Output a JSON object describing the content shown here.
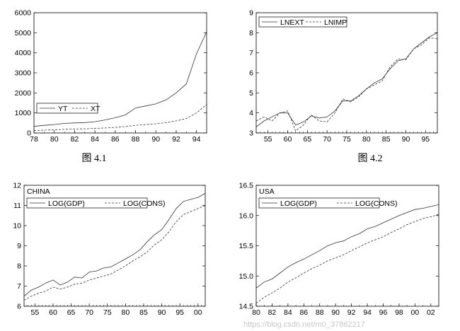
{
  "figures": {
    "fig1_caption": "图 4.1",
    "fig2_caption": "图 4.2"
  },
  "watermark": "https://blog.csdn.net/m0_37862217",
  "chart_data": [
    {
      "type": "line",
      "x": [
        78,
        79,
        80,
        81,
        82,
        83,
        84,
        85,
        86,
        87,
        88,
        89,
        90,
        91,
        92,
        93,
        94,
        95
      ],
      "series": [
        {
          "name": "YT",
          "style": "solid",
          "values": [
            330,
            380,
            420,
            480,
            500,
            520,
            560,
            650,
            760,
            900,
            1250,
            1350,
            1450,
            1650,
            2000,
            2450,
            3950,
            5050
          ]
        },
        {
          "name": "XT",
          "style": "dashed",
          "values": [
            120,
            140,
            160,
            180,
            200,
            210,
            230,
            250,
            280,
            320,
            380,
            420,
            460,
            520,
            600,
            720,
            1000,
            1420
          ]
        }
      ],
      "xlim": [
        78,
        95
      ],
      "ylim": [
        0,
        6000
      ],
      "xticks": [
        78,
        80,
        82,
        84,
        86,
        88,
        90,
        92,
        94
      ],
      "yticks": [
        0,
        1000,
        2000,
        3000,
        4000,
        5000,
        6000
      ],
      "legend": "bottom-left",
      "grid": false
    },
    {
      "type": "line",
      "x": [
        52,
        54,
        56,
        58,
        60,
        62,
        64,
        66,
        68,
        70,
        72,
        74,
        76,
        78,
        80,
        82,
        84,
        86,
        88,
        90,
        92,
        94,
        96,
        98
      ],
      "series": [
        {
          "name": "LNEXT",
          "style": "solid",
          "values": [
            3.3,
            3.6,
            3.8,
            4.0,
            4.0,
            3.4,
            3.55,
            3.85,
            3.75,
            3.8,
            4.1,
            4.6,
            4.6,
            4.85,
            5.2,
            5.5,
            5.7,
            6.2,
            6.6,
            6.7,
            7.2,
            7.5,
            7.8,
            8.0
          ]
        },
        {
          "name": "LNIMP",
          "style": "dashed",
          "values": [
            3.6,
            3.8,
            3.6,
            4.0,
            4.1,
            3.1,
            3.4,
            3.9,
            3.6,
            3.55,
            4.0,
            4.7,
            4.55,
            4.8,
            5.2,
            5.4,
            5.6,
            6.3,
            6.7,
            6.65,
            7.2,
            7.4,
            7.75,
            7.7
          ]
        }
      ],
      "xlim": [
        52,
        98
      ],
      "ylim": [
        3,
        9
      ],
      "xticks": [
        55,
        60,
        65,
        70,
        75,
        80,
        85,
        90,
        95
      ],
      "yticks": [
        3,
        4,
        5,
        6,
        7,
        8,
        9
      ],
      "legend": "top-left",
      "grid": false
    },
    {
      "type": "line",
      "title": "CHINA",
      "x": [
        52,
        54,
        56,
        58,
        60,
        62,
        64,
        66,
        68,
        70,
        72,
        74,
        76,
        78,
        80,
        82,
        84,
        86,
        88,
        90,
        92,
        94,
        96,
        98,
        100,
        102
      ],
      "series": [
        {
          "name": "LOG(GDP)",
          "style": "solid",
          "values": [
            6.5,
            6.8,
            6.95,
            7.15,
            7.3,
            7.05,
            7.2,
            7.45,
            7.4,
            7.7,
            7.75,
            7.9,
            7.95,
            8.15,
            8.35,
            8.55,
            8.8,
            9.2,
            9.55,
            9.8,
            10.3,
            10.85,
            11.2,
            11.3,
            11.4,
            11.6
          ]
        },
        {
          "name": "LOG(CONS)",
          "style": "dashed",
          "values": [
            6.3,
            6.5,
            6.65,
            6.75,
            6.95,
            6.85,
            6.95,
            7.1,
            7.15,
            7.3,
            7.4,
            7.5,
            7.6,
            7.8,
            8.0,
            8.25,
            8.45,
            8.7,
            9.05,
            9.3,
            9.7,
            10.2,
            10.55,
            10.7,
            10.85,
            11.0
          ]
        }
      ],
      "xlim": [
        52,
        102
      ],
      "ylim": [
        6,
        12
      ],
      "xticks": [
        "55",
        "60",
        "65",
        "70",
        "75",
        "80",
        "85",
        "90",
        "95",
        "00"
      ],
      "xtick_values": [
        55,
        60,
        65,
        70,
        75,
        80,
        85,
        90,
        95,
        100
      ],
      "yticks": [
        6,
        7,
        8,
        9,
        10,
        11,
        12
      ],
      "legend": "top-left",
      "grid": false
    },
    {
      "type": "line",
      "title": "USA",
      "x": [
        80,
        81,
        82,
        83,
        84,
        85,
        86,
        87,
        88,
        89,
        90,
        91,
        92,
        93,
        94,
        95,
        96,
        97,
        98,
        99,
        100,
        101,
        102,
        103
      ],
      "series": [
        {
          "name": "LOG(GDP)",
          "style": "solid",
          "values": [
            14.8,
            14.9,
            14.95,
            15.05,
            15.15,
            15.22,
            15.28,
            15.35,
            15.42,
            15.5,
            15.55,
            15.58,
            15.65,
            15.7,
            15.78,
            15.82,
            15.88,
            15.94,
            16.0,
            16.05,
            16.1,
            16.12,
            16.15,
            16.18
          ]
        },
        {
          "name": "LOG(CONS)",
          "style": "dashed",
          "values": [
            14.55,
            14.65,
            14.72,
            14.8,
            14.9,
            14.97,
            15.05,
            15.12,
            15.18,
            15.25,
            15.3,
            15.35,
            15.42,
            15.48,
            15.55,
            15.6,
            15.65,
            15.72,
            15.78,
            15.85,
            15.9,
            15.95,
            15.98,
            16.02
          ]
        }
      ],
      "xlim": [
        80,
        103
      ],
      "ylim": [
        14.5,
        16.5
      ],
      "xticks": [
        "80",
        "82",
        "84",
        "86",
        "88",
        "90",
        "92",
        "94",
        "96",
        "98",
        "00",
        "02"
      ],
      "xtick_values": [
        80,
        82,
        84,
        86,
        88,
        90,
        92,
        94,
        96,
        98,
        100,
        102
      ],
      "yticks": [
        "14.5",
        "15.0",
        "15.5",
        "16.0",
        "16.5"
      ],
      "ytick_values": [
        14.5,
        15.0,
        15.5,
        16.0,
        16.5
      ],
      "legend": "top-left",
      "grid": false
    }
  ]
}
